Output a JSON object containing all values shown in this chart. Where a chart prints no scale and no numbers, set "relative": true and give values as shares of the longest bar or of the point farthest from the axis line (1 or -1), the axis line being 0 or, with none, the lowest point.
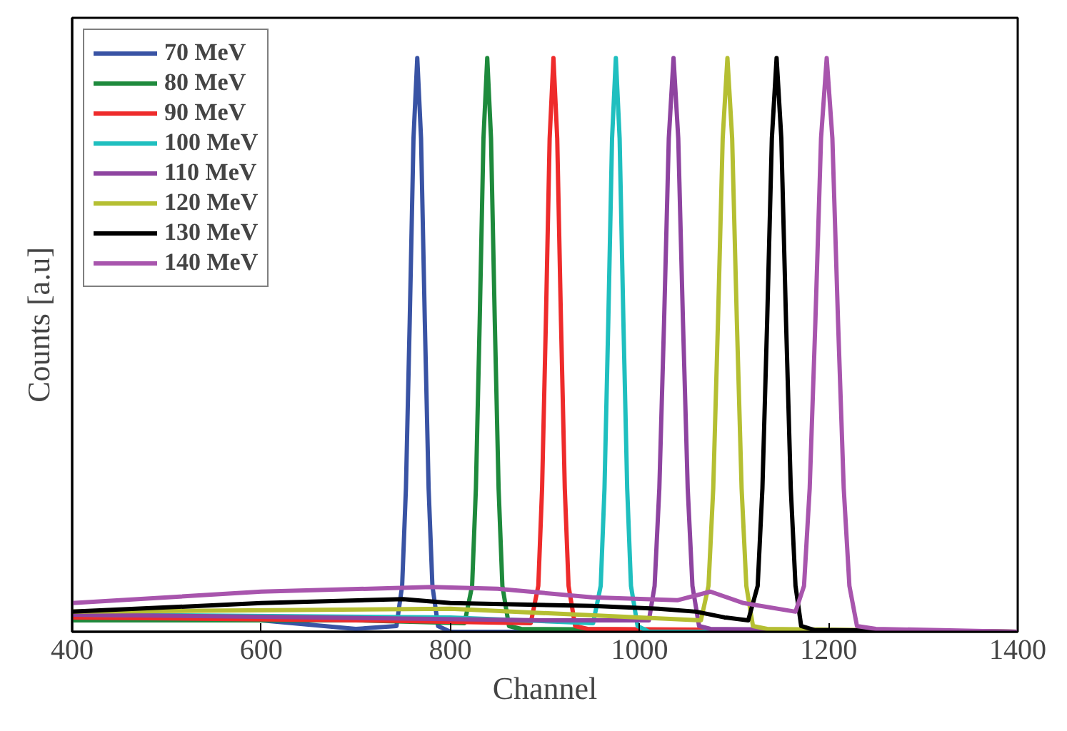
{
  "chart_data": {
    "type": "line",
    "xlabel": "Channel",
    "ylabel": "Counts [a.u]",
    "relative": true,
    "xlim": [
      400,
      1400
    ],
    "xticks": [
      400,
      600,
      800,
      1000,
      1200,
      1400
    ],
    "grid": false,
    "legend": "top left",
    "marker": "none",
    "line_style": "solid",
    "series": [
      {
        "name": "70 MeV",
        "color": "#3953a4",
        "x": [
          400,
          600,
          700,
          743,
          749,
          753,
          757,
          761,
          765,
          769,
          773,
          777,
          781,
          787,
          800,
          1400
        ],
        "values": [
          0.025,
          0.02,
          0.005,
          0.01,
          0.08,
          0.25,
          0.54,
          0.86,
          1,
          0.86,
          0.54,
          0.25,
          0.08,
          0.01,
          0,
          0
        ]
      },
      {
        "name": "80 MeV",
        "color": "#1e8a3c",
        "x": [
          400,
          700,
          815,
          823,
          827,
          831,
          835,
          839,
          843,
          847,
          851,
          855,
          862,
          875,
          1400
        ],
        "values": [
          0.02,
          0.02,
          0.015,
          0.08,
          0.25,
          0.54,
          0.86,
          1,
          0.86,
          0.54,
          0.25,
          0.08,
          0.01,
          0.005,
          0
        ]
      },
      {
        "name": "90 MeV",
        "color": "#ee2b2b",
        "x": [
          400,
          700,
          885,
          893,
          897,
          901,
          905,
          909,
          913,
          917,
          921,
          925,
          932,
          945,
          1400
        ],
        "values": [
          0.025,
          0.02,
          0.015,
          0.08,
          0.25,
          0.54,
          0.86,
          1,
          0.86,
          0.54,
          0.25,
          0.08,
          0.01,
          0.005,
          0
        ]
      },
      {
        "name": "100 MeV",
        "color": "#1fbfbf",
        "x": [
          400,
          800,
          951,
          959,
          963,
          967,
          971,
          975,
          979,
          983,
          987,
          991,
          998,
          1010,
          1400
        ],
        "values": [
          0.03,
          0.025,
          0.015,
          0.08,
          0.25,
          0.54,
          0.86,
          1,
          0.86,
          0.54,
          0.25,
          0.08,
          0.01,
          0,
          0
        ]
      },
      {
        "name": "110 MeV",
        "color": "#8e44a0",
        "x": [
          400,
          900,
          1010,
          1016,
          1021,
          1026,
          1031,
          1036,
          1041,
          1046,
          1051,
          1056,
          1063,
          1075,
          1400
        ],
        "values": [
          0.03,
          0.02,
          0.02,
          0.08,
          0.25,
          0.54,
          0.86,
          1,
          0.86,
          0.54,
          0.25,
          0.08,
          0.01,
          0.005,
          0
        ]
      },
      {
        "name": "120 MeV",
        "color": "#b5bf32",
        "x": [
          400,
          800,
          1000,
          1065,
          1073,
          1078,
          1083,
          1088,
          1093,
          1098,
          1103,
          1108,
          1113,
          1120,
          1135,
          1400
        ],
        "values": [
          0.035,
          0.04,
          0.025,
          0.02,
          0.08,
          0.25,
          0.54,
          0.86,
          1,
          0.86,
          0.54,
          0.25,
          0.08,
          0.01,
          0.005,
          0
        ]
      },
      {
        "name": "130 MeV",
        "color": "#000000",
        "x": [
          400,
          600,
          750,
          800,
          950,
          1020,
          1060,
          1090,
          1115,
          1125,
          1130,
          1135,
          1140,
          1145,
          1150,
          1155,
          1160,
          1165,
          1171,
          1185,
          1400
        ],
        "values": [
          0.035,
          0.05,
          0.057,
          0.05,
          0.045,
          0.04,
          0.035,
          0.025,
          0.02,
          0.08,
          0.25,
          0.54,
          0.86,
          1,
          0.86,
          0.54,
          0.25,
          0.08,
          0.01,
          0.003,
          0
        ]
      },
      {
        "name": "140 MeV",
        "color": "#a855ad",
        "x": [
          400,
          600,
          780,
          850,
          950,
          1040,
          1075,
          1110,
          1165,
          1174,
          1180,
          1186,
          1192,
          1198,
          1204,
          1210,
          1216,
          1222,
          1230,
          1250,
          1400
        ],
        "values": [
          0.05,
          0.07,
          0.078,
          0.075,
          0.06,
          0.055,
          0.07,
          0.05,
          0.035,
          0.08,
          0.25,
          0.54,
          0.86,
          1,
          0.86,
          0.54,
          0.25,
          0.08,
          0.01,
          0.005,
          0
        ]
      }
    ]
  }
}
